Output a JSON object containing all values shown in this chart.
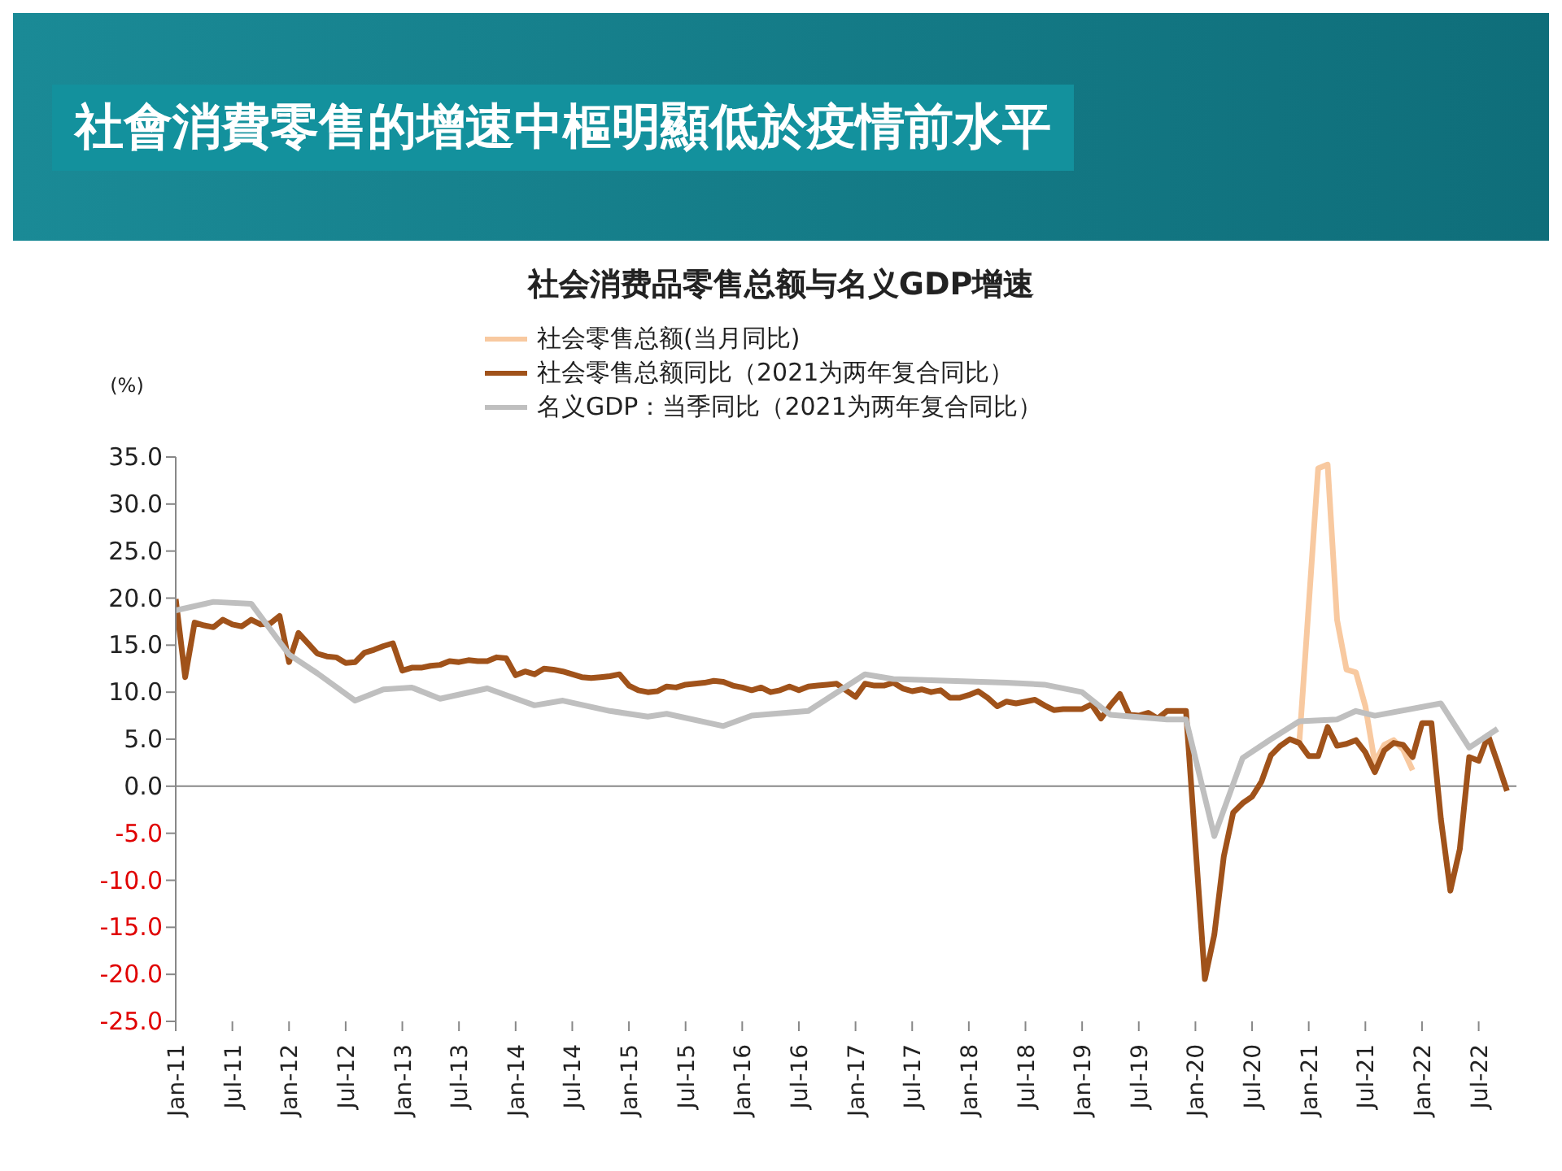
{
  "chart_data": {
    "type": "line",
    "title": "社會消費零售的增速中樞明顯低於疫情前水平",
    "subtitle": "社会消费品零售总额与名义GDP增速",
    "ylabel": "(%)",
    "x": [
      "2011-01",
      "2011-02",
      "2011-03",
      "2011-04",
      "2011-05",
      "2011-06",
      "2011-07",
      "2011-08",
      "2011-09",
      "2011-10",
      "2011-11",
      "2011-12",
      "2012-01",
      "2012-02",
      "2012-03",
      "2012-04",
      "2012-05",
      "2012-06",
      "2012-07",
      "2012-08",
      "2012-09",
      "2012-10",
      "2012-11",
      "2012-12",
      "2013-01",
      "2013-02",
      "2013-03",
      "2013-04",
      "2013-05",
      "2013-06",
      "2013-07",
      "2013-08",
      "2013-09",
      "2013-10",
      "2013-11",
      "2013-12",
      "2014-01",
      "2014-02",
      "2014-03",
      "2014-04",
      "2014-05",
      "2014-06",
      "2014-07",
      "2014-08",
      "2014-09",
      "2014-10",
      "2014-11",
      "2014-12",
      "2015-01",
      "2015-02",
      "2015-03",
      "2015-04",
      "2015-05",
      "2015-06",
      "2015-07",
      "2015-08",
      "2015-09",
      "2015-10",
      "2015-11",
      "2015-12",
      "2016-01",
      "2016-02",
      "2016-03",
      "2016-04",
      "2016-05",
      "2016-06",
      "2016-07",
      "2016-08",
      "2016-09",
      "2016-10",
      "2016-11",
      "2016-12",
      "2017-01",
      "2017-02",
      "2017-03",
      "2017-04",
      "2017-05",
      "2017-06",
      "2017-07",
      "2017-08",
      "2017-09",
      "2017-10",
      "2017-11",
      "2017-12",
      "2018-01",
      "2018-02",
      "2018-03",
      "2018-04",
      "2018-05",
      "2018-06",
      "2018-07",
      "2018-08",
      "2018-09",
      "2018-10",
      "2018-11",
      "2018-12",
      "2019-01",
      "2019-02",
      "2019-03",
      "2019-04",
      "2019-05",
      "2019-06",
      "2019-07",
      "2019-08",
      "2019-09",
      "2019-10",
      "2019-11",
      "2019-12",
      "2020-02",
      "2020-03",
      "2020-04",
      "2020-05",
      "2020-06",
      "2020-07",
      "2020-08",
      "2020-09",
      "2020-10",
      "2020-11",
      "2020-12",
      "2021-01",
      "2021-02",
      "2021-03",
      "2021-04",
      "2021-05",
      "2021-06",
      "2021-07",
      "2021-08",
      "2021-09",
      "2021-10",
      "2021-11",
      "2021-12",
      "2022-01",
      "2022-02",
      "2022-03",
      "2022-04",
      "2022-05",
      "2022-06",
      "2022-07",
      "2022-08",
      "2022-09",
      "2022-10"
    ],
    "series": [
      {
        "name": "社会零售总额(当月同比)",
        "color": "#f8c9a0",
        "x": [
          "2020-12",
          "2021-02",
          "2021-03",
          "2021-04",
          "2021-05",
          "2021-06",
          "2021-07",
          "2021-08",
          "2021-09",
          "2021-10",
          "2021-11",
          "2021-12"
        ],
        "values": [
          4.6,
          33.8,
          34.2,
          17.7,
          12.4,
          12.1,
          8.5,
          2.5,
          4.4,
          4.9,
          3.9,
          1.7
        ]
      },
      {
        "name": "社会零售总额同比（2021为两年复合同比）",
        "color": "#a0521a",
        "values": [
          19.9,
          11.6,
          17.4,
          17.1,
          16.9,
          17.7,
          17.2,
          17.0,
          17.7,
          17.2,
          17.3,
          18.1,
          13.2,
          16.3,
          15.2,
          14.1,
          13.8,
          13.7,
          13.1,
          13.2,
          14.2,
          14.5,
          14.9,
          15.2,
          12.3,
          12.6,
          12.6,
          12.8,
          12.9,
          13.3,
          13.2,
          13.4,
          13.3,
          13.3,
          13.7,
          13.6,
          11.8,
          12.2,
          11.9,
          12.5,
          12.4,
          12.2,
          11.9,
          11.6,
          11.5,
          11.6,
          11.7,
          11.9,
          10.7,
          10.2,
          10.0,
          10.1,
          10.6,
          10.5,
          10.8,
          10.9,
          11.0,
          11.2,
          11.1,
          10.7,
          10.5,
          10.2,
          10.5,
          10.0,
          10.2,
          10.6,
          10.2,
          10.6,
          10.7,
          10.8,
          10.9,
          10.2,
          9.5,
          10.9,
          10.7,
          10.7,
          11.0,
          10.4,
          10.1,
          10.3,
          10.0,
          10.2,
          9.4,
          9.4,
          9.7,
          10.1,
          9.4,
          8.5,
          9.0,
          8.8,
          9.0,
          9.2,
          8.6,
          8.1,
          8.2,
          8.2,
          8.2,
          8.7,
          7.2,
          8.6,
          9.8,
          7.6,
          7.5,
          7.8,
          7.2,
          8.0,
          8.0,
          8.0,
          -20.5,
          -15.8,
          -7.5,
          -2.8,
          -1.8,
          -1.1,
          0.5,
          3.3,
          4.3,
          5.0,
          4.6,
          3.2,
          3.2,
          6.3,
          4.3,
          4.5,
          4.9,
          3.6,
          1.5,
          3.8,
          4.6,
          4.4,
          3.1,
          6.7,
          6.7,
          -3.5,
          -11.1,
          -6.7,
          3.1,
          2.7,
          5.4,
          2.5,
          -0.5
        ]
      },
      {
        "name": "名义GDP：当季同比（2021为两年复合同比）",
        "color": "#bfbfbf",
        "x": [
          "2011-01",
          "2011-05",
          "2011-09",
          "2012-01",
          "2012-04",
          "2012-08",
          "2012-11",
          "2013-02",
          "2013-05",
          "2013-10",
          "2014-03",
          "2014-06",
          "2014-11",
          "2015-03",
          "2015-05",
          "2015-11",
          "2016-02",
          "2016-08",
          "2017-02",
          "2017-05",
          "2018-05",
          "2018-09",
          "2019-01",
          "2019-04",
          "2019-10",
          "2019-12",
          "2020-03",
          "2020-06",
          "2020-09",
          "2020-12",
          "2021-04",
          "2021-06",
          "2021-08",
          "2022-03",
          "2022-06",
          "2022-09"
        ],
        "values": [
          18.7,
          19.6,
          19.4,
          14.0,
          12.0,
          9.1,
          10.3,
          10.5,
          9.3,
          10.4,
          8.6,
          9.1,
          8.0,
          7.4,
          7.7,
          6.4,
          7.5,
          8.0,
          11.9,
          11.4,
          11.0,
          10.8,
          10.0,
          7.6,
          7.1,
          7.1,
          -5.3,
          3.0,
          5.0,
          6.9,
          7.1,
          8.0,
          7.5,
          8.8,
          4.1,
          6.1
        ]
      }
    ],
    "xlim": [
      "2011-01",
      "2022-11"
    ],
    "xticks": [
      {
        "value": "2011-01",
        "label": "Jan-11"
      },
      {
        "value": "2011-07",
        "label": "Jul-11"
      },
      {
        "value": "2012-01",
        "label": "Jan-12"
      },
      {
        "value": "2012-07",
        "label": "Jul-12"
      },
      {
        "value": "2013-01",
        "label": "Jan-13"
      },
      {
        "value": "2013-07",
        "label": "Jul-13"
      },
      {
        "value": "2014-01",
        "label": "Jan-14"
      },
      {
        "value": "2014-07",
        "label": "Jul-14"
      },
      {
        "value": "2015-01",
        "label": "Jan-15"
      },
      {
        "value": "2015-07",
        "label": "Jul-15"
      },
      {
        "value": "2016-01",
        "label": "Jan-16"
      },
      {
        "value": "2016-07",
        "label": "Jul-16"
      },
      {
        "value": "2017-01",
        "label": "Jan-17"
      },
      {
        "value": "2017-07",
        "label": "Jul-17"
      },
      {
        "value": "2018-01",
        "label": "Jan-18"
      },
      {
        "value": "2018-07",
        "label": "Jul-18"
      },
      {
        "value": "2019-01",
        "label": "Jan-19"
      },
      {
        "value": "2019-07",
        "label": "Jul-19"
      },
      {
        "value": "2020-01",
        "label": "Jan-20"
      },
      {
        "value": "2020-07",
        "label": "Jul-20"
      },
      {
        "value": "2021-01",
        "label": "Jan-21"
      },
      {
        "value": "2021-07",
        "label": "Jul-21"
      },
      {
        "value": "2022-01",
        "label": "Jan-22"
      },
      {
        "value": "2022-07",
        "label": "Jul-22"
      }
    ],
    "ylim": [
      -25,
      35
    ],
    "yticks": [
      {
        "value": 35,
        "label": "35.0"
      },
      {
        "value": 30,
        "label": "30.0"
      },
      {
        "value": 25,
        "label": "25.0"
      },
      {
        "value": 20,
        "label": "20.0"
      },
      {
        "value": 15,
        "label": "15.0"
      },
      {
        "value": 10,
        "label": "10.0"
      },
      {
        "value": 5,
        "label": "5.0"
      },
      {
        "value": 0,
        "label": "0.0"
      },
      {
        "value": -5,
        "label": "-5.0"
      },
      {
        "value": -10,
        "label": "-10.0"
      },
      {
        "value": -15,
        "label": "-15.0"
      },
      {
        "value": -20,
        "label": "-20.0"
      },
      {
        "value": -25,
        "label": "-25.0"
      }
    ],
    "ref_lines": [
      {
        "axis": "y",
        "value": 0,
        "color": "#888888"
      }
    ],
    "legend": "top",
    "marker": "none",
    "line_style": "solid"
  }
}
